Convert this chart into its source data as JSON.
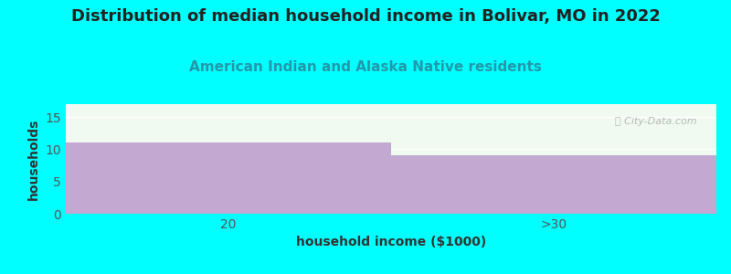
{
  "title": "Distribution of median household income in Bolivar, MO in 2022",
  "subtitle": "American Indian and Alaska Native residents",
  "categories": [
    "20",
    ">30"
  ],
  "values": [
    11,
    9
  ],
  "bar_color": "#C3A8D1",
  "background_color": "#00FFFF",
  "plot_bg_color": "#F0FAF0",
  "xlabel": "household income ($1000)",
  "ylabel": "households",
  "ylim": [
    0,
    17
  ],
  "yticks": [
    0,
    5,
    10,
    15
  ],
  "watermark": "Ⓜ City-Data.com",
  "title_fontsize": 13,
  "subtitle_fontsize": 11,
  "subtitle_color": "#2299AA",
  "axis_label_fontsize": 10,
  "tick_label_fontsize": 10
}
